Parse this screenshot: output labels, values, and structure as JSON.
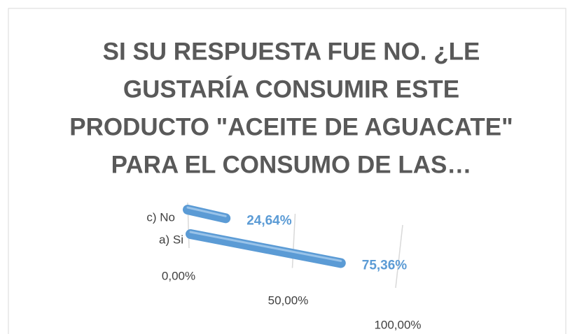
{
  "chart_data": {
    "type": "bar",
    "orientation": "horizontal",
    "title": [
      "SI SU RESPUESTA FUE NO. ¿LE",
      "GUSTARÍA CONSUMIR ESTE",
      "PRODUCTO \"ACEITE DE AGUACATE\"",
      "PARA EL CONSUMO DE LAS…"
    ],
    "categories": [
      "c) No",
      "a) Si"
    ],
    "values": [
      24.64,
      75.36
    ],
    "value_labels": [
      "24,64%",
      "75,36%"
    ],
    "color": "#5b9bd5",
    "xlim": [
      0,
      100
    ],
    "xticks": [
      {
        "value": 0,
        "label": "0,00%"
      },
      {
        "value": 50,
        "label": "50,00%"
      },
      {
        "value": 100,
        "label": "100,00%"
      }
    ],
    "grid": true
  }
}
